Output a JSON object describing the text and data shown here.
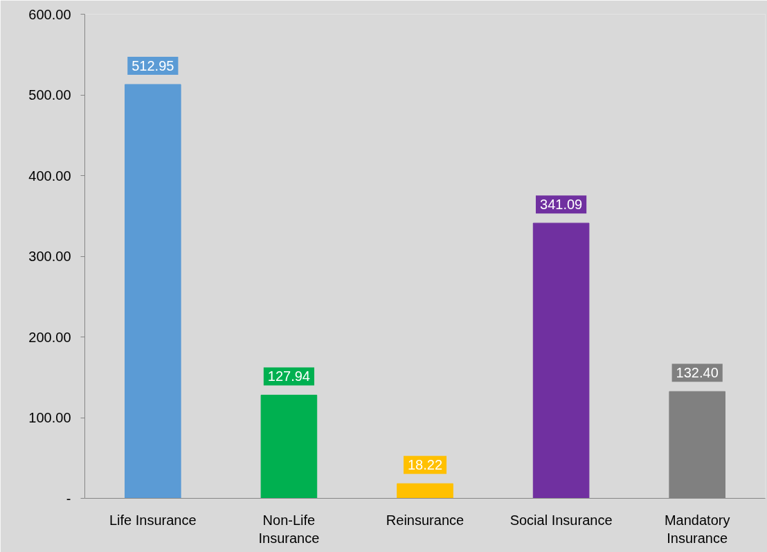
{
  "chart_data": {
    "type": "bar",
    "categories": [
      "Life Insurance",
      "Non-Life Insurance",
      "Reinsurance",
      "Social Insurance",
      "Mandatory Insurance"
    ],
    "values": [
      512.95,
      127.94,
      18.22,
      341.09,
      132.4
    ],
    "colors": [
      "#5b9bd5",
      "#00b050",
      "#ffc000",
      "#7030a0",
      "#808080"
    ],
    "value_labels": [
      "512.95",
      "127.94",
      "18.22",
      "341.09",
      "132.40"
    ],
    "ylim": [
      0,
      600
    ],
    "yticks": [
      {
        "value": 0,
        "label": "-"
      },
      {
        "value": 100,
        "label": "100.00"
      },
      {
        "value": 200,
        "label": "200.00"
      },
      {
        "value": 300,
        "label": "300.00"
      },
      {
        "value": 400,
        "label": "400.00"
      },
      {
        "value": 500,
        "label": "500.00"
      },
      {
        "value": 600,
        "label": "600.00"
      }
    ],
    "grid": false
  }
}
